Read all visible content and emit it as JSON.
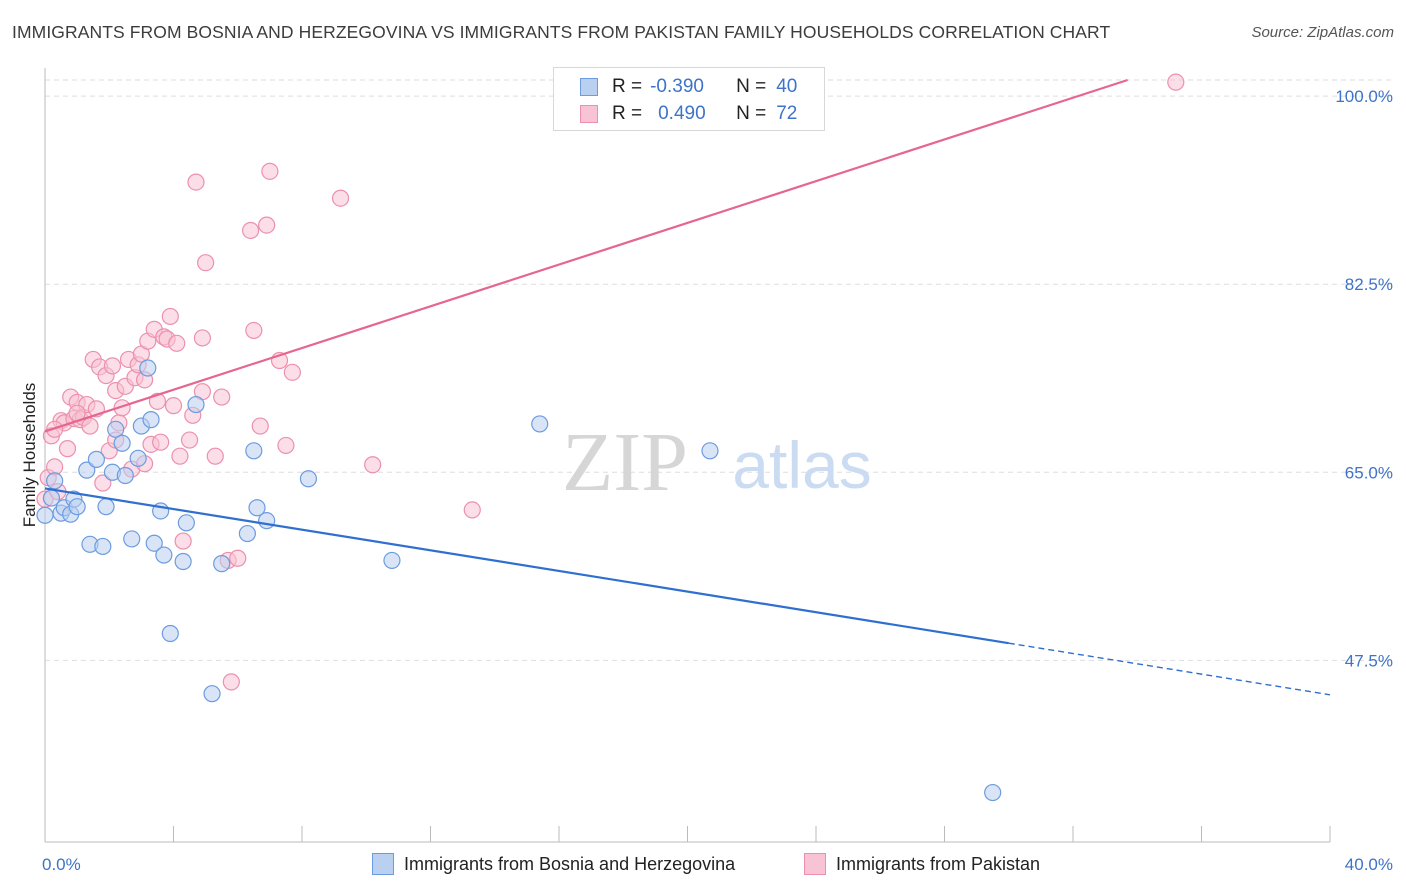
{
  "title": "IMMIGRANTS FROM BOSNIA AND HERZEGOVINA VS IMMIGRANTS FROM PAKISTAN FAMILY HOUSEHOLDS CORRELATION CHART",
  "source": "Source: ZipAtlas.com",
  "watermark": {
    "zip": "ZIP",
    "atlas": "atlas"
  },
  "legend": {
    "rows": [
      {
        "r_label": "R =",
        "r_value": "-0.390",
        "n_label": "N =",
        "n_value": "40"
      },
      {
        "r_label": "R =",
        "r_value": "0.490",
        "n_label": "N =",
        "n_value": "72"
      }
    ]
  },
  "bottom_legend": {
    "bosnia": "Immigrants from Bosnia and Herzegovina",
    "pakistan": "Immigrants from Pakistan"
  },
  "colors": {
    "bosnia_fill": "#b9d0f1",
    "bosnia_stroke": "#6c9be0",
    "bosnia_line": "#2f6fcf",
    "pakistan_fill": "#f8c3d4",
    "pakistan_stroke": "#ec90ae",
    "pakistan_line": "#e5668f",
    "tick_text": "#3d73c9",
    "grid": "#dedede"
  },
  "chart_data": {
    "type": "scatter",
    "title": "IMMIGRANTS FROM BOSNIA AND HERZEGOVINA VS IMMIGRANTS FROM PAKISTAN FAMILY HOUSEHOLDS CORRELATION CHART",
    "xlabel": "",
    "ylabel": "Family Households",
    "xlim": [
      0,
      40
    ],
    "ylim": [
      30.6,
      101.5
    ],
    "x_tick_labels": [
      "0.0%",
      "40.0%"
    ],
    "y_ticks": [
      47.5,
      65.0,
      82.5,
      100.0
    ],
    "y_tick_labels": [
      "47.5%",
      "65.0%",
      "82.5%",
      "100.0%"
    ],
    "grid": true,
    "legend_position": "top-center",
    "series": [
      {
        "name": "Immigrants from Bosnia and Herzegovina",
        "r": -0.39,
        "n": 40,
        "trend": {
          "x0": 0,
          "y0": 63.5,
          "x1": 40,
          "y1": 44.3,
          "solid_until_x": 30.0
        },
        "points": [
          [
            0.0,
            61.0
          ],
          [
            0.2,
            62.6
          ],
          [
            0.3,
            64.2
          ],
          [
            0.5,
            61.2
          ],
          [
            0.6,
            61.7
          ],
          [
            0.8,
            61.1
          ],
          [
            0.9,
            62.5
          ],
          [
            1.0,
            61.8
          ],
          [
            1.3,
            65.2
          ],
          [
            1.4,
            58.3
          ],
          [
            1.6,
            66.2
          ],
          [
            1.8,
            58.1
          ],
          [
            1.9,
            61.8
          ],
          [
            2.1,
            65.0
          ],
          [
            2.2,
            69.0
          ],
          [
            2.4,
            67.7
          ],
          [
            2.5,
            64.7
          ],
          [
            2.7,
            58.8
          ],
          [
            2.9,
            66.3
          ],
          [
            3.0,
            69.3
          ],
          [
            3.2,
            74.7
          ],
          [
            3.3,
            69.9
          ],
          [
            3.4,
            58.4
          ],
          [
            3.6,
            61.4
          ],
          [
            3.7,
            57.3
          ],
          [
            3.9,
            50.0
          ],
          [
            4.3,
            56.7
          ],
          [
            4.4,
            60.3
          ],
          [
            4.7,
            71.3
          ],
          [
            5.2,
            44.4
          ],
          [
            5.5,
            56.5
          ],
          [
            6.3,
            59.3
          ],
          [
            6.5,
            67.0
          ],
          [
            6.6,
            61.7
          ],
          [
            6.9,
            60.5
          ],
          [
            8.2,
            64.4
          ],
          [
            10.8,
            56.8
          ],
          [
            15.4,
            69.5
          ],
          [
            20.7,
            67.0
          ],
          [
            29.5,
            35.2
          ]
        ]
      },
      {
        "name": "Immigrants from Pakistan",
        "r": 0.49,
        "n": 72,
        "trend": {
          "x0": 0,
          "y0": 68.8,
          "x1": 33.7,
          "y1": 101.5
        },
        "points": [
          [
            0.0,
            62.5
          ],
          [
            0.1,
            64.5
          ],
          [
            0.2,
            68.4
          ],
          [
            0.3,
            65.5
          ],
          [
            0.4,
            63.2
          ],
          [
            0.5,
            69.8
          ],
          [
            0.6,
            69.6
          ],
          [
            0.7,
            67.2
          ],
          [
            0.8,
            72.0
          ],
          [
            0.9,
            70.0
          ],
          [
            1.0,
            71.5
          ],
          [
            1.1,
            69.9
          ],
          [
            1.2,
            70.1
          ],
          [
            1.3,
            71.3
          ],
          [
            1.4,
            69.3
          ],
          [
            1.5,
            75.5
          ],
          [
            1.6,
            70.9
          ],
          [
            1.7,
            74.8
          ],
          [
            1.8,
            64.0
          ],
          [
            1.9,
            74.0
          ],
          [
            2.0,
            67.0
          ],
          [
            2.1,
            74.9
          ],
          [
            2.2,
            72.6
          ],
          [
            2.3,
            69.6
          ],
          [
            2.4,
            71.0
          ],
          [
            2.5,
            73.0
          ],
          [
            2.6,
            75.5
          ],
          [
            2.7,
            65.3
          ],
          [
            2.8,
            73.8
          ],
          [
            2.9,
            75.0
          ],
          [
            3.0,
            76.0
          ],
          [
            3.1,
            65.8
          ],
          [
            3.2,
            77.2
          ],
          [
            3.3,
            67.6
          ],
          [
            3.4,
            78.3
          ],
          [
            3.5,
            71.6
          ],
          [
            3.6,
            67.8
          ],
          [
            3.7,
            77.6
          ],
          [
            3.8,
            77.4
          ],
          [
            3.9,
            79.5
          ],
          [
            4.0,
            71.2
          ],
          [
            4.1,
            77.0
          ],
          [
            4.2,
            66.5
          ],
          [
            4.3,
            58.6
          ],
          [
            4.5,
            68.0
          ],
          [
            4.6,
            70.3
          ],
          [
            4.7,
            92.0
          ],
          [
            4.9,
            77.5
          ],
          [
            5.0,
            84.5
          ],
          [
            5.3,
            66.5
          ],
          [
            5.5,
            72.0
          ],
          [
            5.7,
            56.8
          ],
          [
            6.4,
            87.5
          ],
          [
            6.5,
            78.2
          ],
          [
            6.7,
            69.3
          ],
          [
            6.9,
            88.0
          ],
          [
            7.0,
            93.0
          ],
          [
            7.3,
            75.4
          ],
          [
            7.5,
            67.5
          ],
          [
            7.7,
            74.3
          ],
          [
            9.2,
            90.5
          ],
          [
            10.2,
            65.7
          ],
          [
            13.3,
            61.5
          ],
          [
            16.3,
            101.5
          ],
          [
            35.2,
            101.3
          ],
          [
            5.8,
            45.5
          ],
          [
            0.3,
            69.0
          ],
          [
            1.0,
            70.5
          ],
          [
            2.2,
            68.0
          ],
          [
            3.1,
            73.6
          ],
          [
            4.9,
            72.5
          ],
          [
            6.0,
            57.0
          ]
        ]
      }
    ]
  }
}
